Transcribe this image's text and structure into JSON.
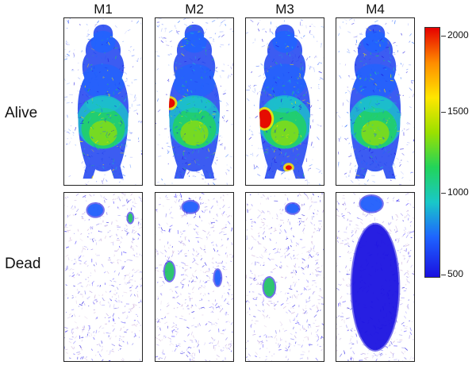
{
  "column_labels": [
    "M1",
    "M2",
    "M3",
    "M4"
  ],
  "row_labels": [
    "Alive",
    "Dead"
  ],
  "colorbar": {
    "ticks": [
      "2000",
      "1500",
      "1000",
      "500"
    ],
    "colors": [
      "#e60000",
      "#ff8c00",
      "#ffe600",
      "#9be000",
      "#22d45a",
      "#19c8c8",
      "#1e64ff",
      "#1a10e0"
    ]
  }
}
